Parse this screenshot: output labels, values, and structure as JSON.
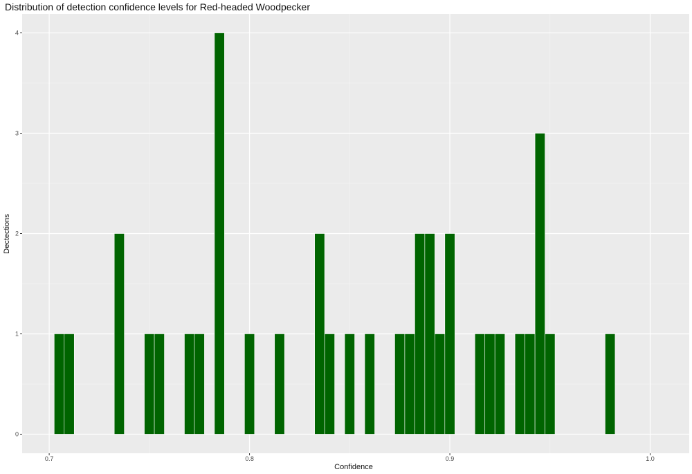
{
  "chart_data": {
    "type": "bar",
    "title": "Distribution of detection confidence levels for Red-headed Woodpecker",
    "xlabel": "Confidence",
    "ylabel": "Dectections",
    "xlim": [
      0.6865,
      1.0195
    ],
    "ylim": [
      -0.19,
      4.19
    ],
    "x_ticks": [
      0.7,
      0.8,
      0.9,
      1.0
    ],
    "x_tick_labels": [
      "0.7",
      "0.8",
      "0.9",
      "1.0"
    ],
    "y_ticks": [
      0,
      1,
      2,
      3,
      4
    ],
    "y_tick_labels": [
      "0",
      "1",
      "2",
      "3",
      "4"
    ],
    "bin_width": 0.005,
    "bars": [
      {
        "x": 0.705,
        "count": 1
      },
      {
        "x": 0.71,
        "count": 1
      },
      {
        "x": 0.735,
        "count": 2
      },
      {
        "x": 0.75,
        "count": 1
      },
      {
        "x": 0.755,
        "count": 1
      },
      {
        "x": 0.77,
        "count": 1
      },
      {
        "x": 0.775,
        "count": 1
      },
      {
        "x": 0.785,
        "count": 4
      },
      {
        "x": 0.8,
        "count": 1
      },
      {
        "x": 0.815,
        "count": 1
      },
      {
        "x": 0.835,
        "count": 2
      },
      {
        "x": 0.84,
        "count": 1
      },
      {
        "x": 0.85,
        "count": 1
      },
      {
        "x": 0.86,
        "count": 1
      },
      {
        "x": 0.875,
        "count": 1
      },
      {
        "x": 0.88,
        "count": 1
      },
      {
        "x": 0.885,
        "count": 2
      },
      {
        "x": 0.89,
        "count": 2
      },
      {
        "x": 0.895,
        "count": 1
      },
      {
        "x": 0.9,
        "count": 2
      },
      {
        "x": 0.915,
        "count": 1
      },
      {
        "x": 0.92,
        "count": 1
      },
      {
        "x": 0.925,
        "count": 1
      },
      {
        "x": 0.935,
        "count": 1
      },
      {
        "x": 0.94,
        "count": 1
      },
      {
        "x": 0.945,
        "count": 3
      },
      {
        "x": 0.95,
        "count": 1
      },
      {
        "x": 0.98,
        "count": 1
      }
    ],
    "grid": true,
    "legend": "none"
  },
  "colors": {
    "bar_fill": "#006400",
    "bar_outline": "#ffffff",
    "panel_background": "#ebebeb",
    "grid_major": "#ffffff",
    "grid_minor": "#f5f5f5"
  }
}
